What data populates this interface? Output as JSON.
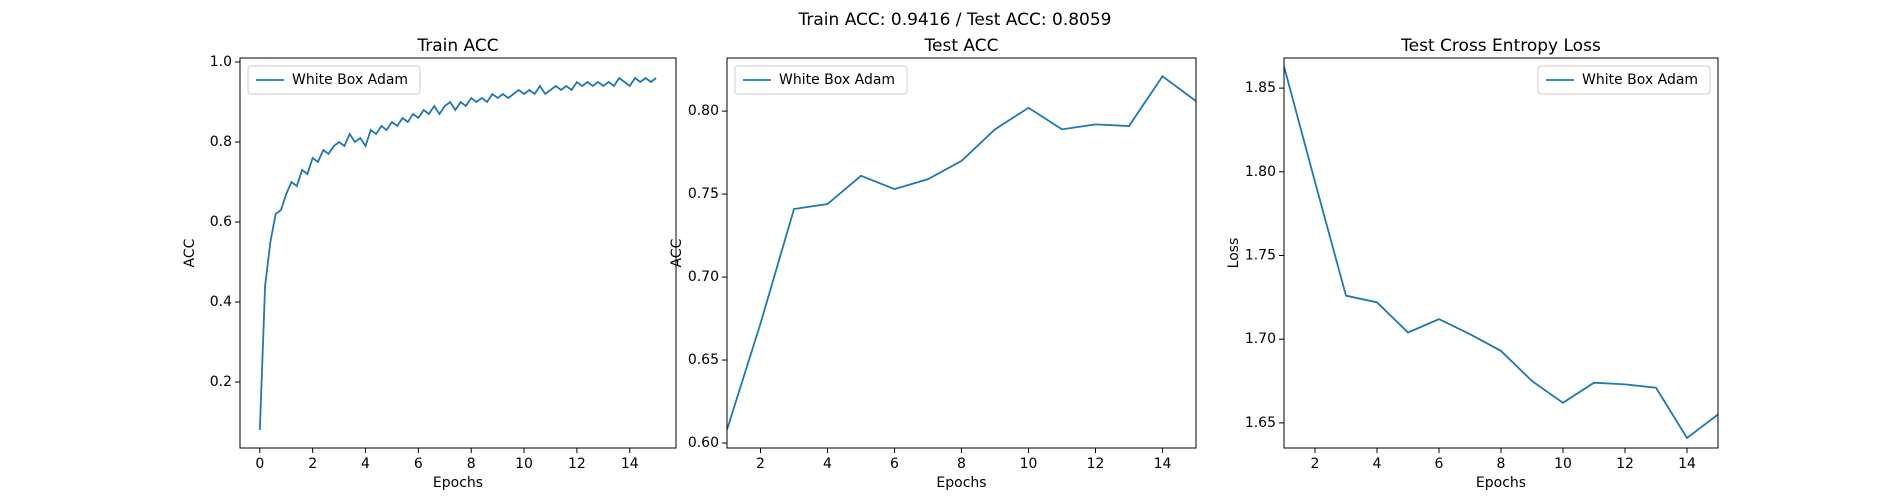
{
  "title": "Train ACC: 0.9416 / Test ACC: 0.8059",
  "chart_data": [
    {
      "type": "line",
      "title": "Train ACC",
      "x_label": "Epochs",
      "y_label": "ACC",
      "x": [
        0,
        0.2,
        0.4,
        0.6,
        0.8,
        1,
        1.2,
        1.4,
        1.6,
        1.8,
        2,
        2.2,
        2.4,
        2.6,
        2.8,
        3,
        3.2,
        3.4,
        3.6,
        3.8,
        4,
        4.2,
        4.4,
        4.6,
        4.8,
        5,
        5.2,
        5.4,
        5.6,
        5.8,
        6,
        6.2,
        6.4,
        6.6,
        6.8,
        7,
        7.2,
        7.4,
        7.6,
        7.8,
        8,
        8.2,
        8.4,
        8.6,
        8.8,
        9,
        9.2,
        9.4,
        9.6,
        9.8,
        10,
        10.2,
        10.4,
        10.6,
        10.8,
        11,
        11.2,
        11.4,
        11.6,
        11.8,
        12,
        12.2,
        12.4,
        12.6,
        12.8,
        13,
        13.2,
        13.4,
        13.6,
        13.8,
        14,
        14.2,
        14.4,
        14.6,
        14.8,
        15
      ],
      "series": [
        {
          "name": "White Box Adam",
          "color": "#1f77b4",
          "values": [
            0.08,
            0.44,
            0.55,
            0.62,
            0.63,
            0.67,
            0.7,
            0.69,
            0.73,
            0.72,
            0.76,
            0.75,
            0.78,
            0.77,
            0.79,
            0.8,
            0.79,
            0.82,
            0.8,
            0.81,
            0.79,
            0.83,
            0.82,
            0.84,
            0.83,
            0.85,
            0.84,
            0.86,
            0.85,
            0.87,
            0.86,
            0.88,
            0.87,
            0.89,
            0.87,
            0.89,
            0.9,
            0.88,
            0.9,
            0.89,
            0.91,
            0.9,
            0.91,
            0.9,
            0.92,
            0.91,
            0.92,
            0.91,
            0.92,
            0.93,
            0.92,
            0.93,
            0.92,
            0.94,
            0.92,
            0.93,
            0.94,
            0.93,
            0.94,
            0.93,
            0.95,
            0.94,
            0.95,
            0.94,
            0.95,
            0.94,
            0.95,
            0.94,
            0.96,
            0.95,
            0.94,
            0.96,
            0.95,
            0.96,
            0.95,
            0.96
          ]
        }
      ],
      "xlim": [
        -0.75,
        15.75
      ],
      "xticks": [
        0,
        2,
        4,
        6,
        8,
        10,
        12,
        14
      ],
      "ylim": [
        0.035,
        1.01
      ],
      "yticks": [
        0.2,
        0.4,
        0.6,
        0.8,
        {
          "value": 1,
          "label": "1.0"
        }
      ],
      "legend": "upper left"
    },
    {
      "type": "line",
      "title": "Test ACC",
      "x_label": "Epochs",
      "y_label": "ACC",
      "x": [
        1,
        2,
        3,
        4,
        5,
        6,
        7,
        8,
        9,
        10,
        11,
        12,
        13,
        14,
        15
      ],
      "series": [
        {
          "name": "White Box Adam",
          "color": "#1f77b4",
          "values": [
            0.608,
            0.672,
            0.741,
            0.744,
            0.761,
            0.753,
            0.759,
            0.77,
            0.789,
            0.802,
            0.789,
            0.792,
            0.791,
            0.821,
            0.806
          ]
        }
      ],
      "xlim": [
        1,
        15
      ],
      "xticks": [
        2,
        4,
        6,
        8,
        10,
        12,
        14
      ],
      "ylim": [
        0.597,
        0.832
      ],
      "yticks": [
        {
          "value": 0.6,
          "label": "0.60"
        },
        0.65,
        {
          "value": 0.7,
          "label": "0.70"
        },
        0.75,
        {
          "value": 0.8,
          "label": "0.80"
        }
      ],
      "legend": "upper left"
    },
    {
      "type": "line",
      "title": "Test Cross Entropy Loss",
      "x_label": "Epochs",
      "y_label": "Loss",
      "x": [
        1,
        2,
        3,
        4,
        5,
        6,
        7,
        8,
        9,
        10,
        11,
        12,
        13,
        14,
        15
      ],
      "series": [
        {
          "name": "White Box Adam",
          "color": "#1f77b4",
          "values": [
            1.863,
            1.794,
            1.726,
            1.722,
            1.704,
            1.712,
            1.703,
            1.693,
            1.675,
            1.662,
            1.674,
            1.673,
            1.671,
            1.641,
            1.655
          ]
        }
      ],
      "xlim": [
        1,
        15
      ],
      "xticks": [
        2,
        4,
        6,
        8,
        10,
        12,
        14
      ],
      "ylim": [
        1.635,
        1.868
      ],
      "yticks": [
        1.65,
        {
          "value": 1.7,
          "label": "1.70"
        },
        1.75,
        {
          "value": 1.8,
          "label": "1.80"
        },
        1.85
      ],
      "legend": "upper right"
    }
  ]
}
